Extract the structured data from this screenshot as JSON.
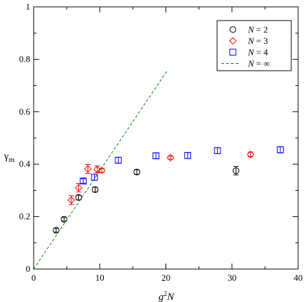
{
  "chart_data": {
    "type": "scatter",
    "xlabel": {
      "base": "g",
      "sup": "2",
      "rest": "N"
    },
    "ylabel": {
      "base": "γ",
      "sub": "m"
    },
    "xlim": [
      0,
      40
    ],
    "ylim": [
      0,
      1
    ],
    "xticks": [
      0,
      10,
      20,
      30,
      40
    ],
    "yticks": [
      0,
      0.2,
      0.4,
      0.6,
      0.8,
      1
    ],
    "ytick_labels": [
      "0",
      "0.2",
      "0.4",
      "0.6",
      "0.8",
      "1"
    ],
    "grid": false,
    "legend_position": "top-right",
    "series": [
      {
        "name": "N = 2",
        "name_parts": {
          "var": "N",
          "rest": " = 2"
        },
        "marker": "circle",
        "color": "#000000",
        "points": [
          {
            "x": 3.4,
            "y": 0.148,
            "err": 0.007
          },
          {
            "x": 4.6,
            "y": 0.19,
            "err": 0.007
          },
          {
            "x": 6.8,
            "y": 0.273,
            "err": 0.009
          },
          {
            "x": 9.3,
            "y": 0.303,
            "err": 0.009
          },
          {
            "x": 15.6,
            "y": 0.37,
            "err": 0.009
          },
          {
            "x": 30.6,
            "y": 0.375,
            "err": 0.016
          }
        ]
      },
      {
        "name": "N = 3",
        "name_parts": {
          "var": "N",
          "rest": " = 3"
        },
        "marker": "diamond",
        "color": "#ff0000",
        "points": [
          {
            "x": 5.7,
            "y": 0.263,
            "err": 0.017
          },
          {
            "x": 6.8,
            "y": 0.31,
            "err": 0.016
          },
          {
            "x": 8.2,
            "y": 0.382,
            "err": 0.017
          },
          {
            "x": 9.6,
            "y": 0.38,
            "err": 0.013
          },
          {
            "x": 10.3,
            "y": 0.376,
            "err": 0.007
          },
          {
            "x": 20.7,
            "y": 0.425,
            "err": 0.006
          },
          {
            "x": 32.8,
            "y": 0.437,
            "err": 0.009
          }
        ]
      },
      {
        "name": "N = 4",
        "name_parts": {
          "var": "N",
          "rest": " = 4"
        },
        "marker": "square",
        "color": "#0000ff",
        "points": [
          {
            "x": 7.5,
            "y": 0.336,
            "err": 0.009
          },
          {
            "x": 9.2,
            "y": 0.35,
            "err": 0.011
          },
          {
            "x": 12.8,
            "y": 0.415,
            "err": 0.011
          },
          {
            "x": 18.5,
            "y": 0.432,
            "err": 0.011
          },
          {
            "x": 23.3,
            "y": 0.433,
            "err": 0.011
          },
          {
            "x": 27.8,
            "y": 0.452,
            "err": 0.011
          },
          {
            "x": 37.3,
            "y": 0.455,
            "err": 0.012
          }
        ]
      },
      {
        "name": "N = ∞",
        "name_parts": {
          "var": "N",
          "rest": " = ∞"
        },
        "marker": "dashed-line",
        "color": "#008000",
        "line": [
          {
            "x": 0,
            "y": 0
          },
          {
            "x": 20.2,
            "y": 0.757
          }
        ]
      }
    ]
  }
}
